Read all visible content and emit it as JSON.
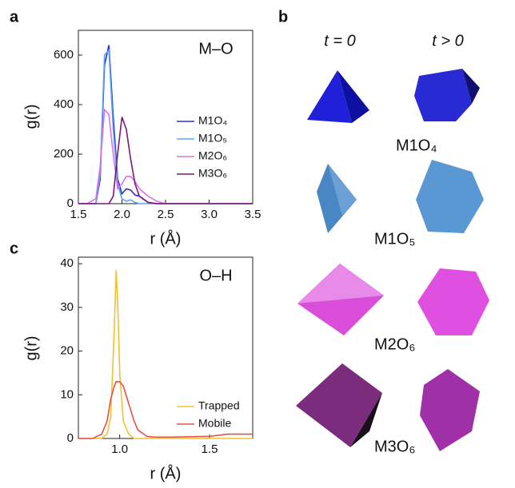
{
  "chart_data": [
    {
      "type": "line",
      "panel_label": "a",
      "annotation": "M–O",
      "xlabel": "r (Å)",
      "ylabel": "g(r)",
      "x": [
        1.5,
        1.6,
        1.7,
        1.75,
        1.8,
        1.85,
        1.9,
        1.95,
        2.0,
        2.05,
        2.1,
        2.15,
        2.2,
        2.3,
        2.4,
        2.5,
        2.6,
        3.0,
        3.5
      ],
      "series": [
        {
          "name": "M1O₄",
          "color": "#2b2bd6",
          "values": [
            0,
            0,
            0,
            100,
            560,
            640,
            350,
            100,
            40,
            60,
            55,
            35,
            30,
            5,
            0,
            0,
            0,
            0,
            0
          ]
        },
        {
          "name": "M1O₅",
          "color": "#5aa6ee",
          "values": [
            0,
            0,
            0,
            120,
            600,
            620,
            300,
            80,
            20,
            10,
            15,
            5,
            0,
            0,
            0,
            0,
            0,
            0,
            0
          ]
        },
        {
          "name": "M2O₆",
          "color": "#e070e8",
          "values": [
            0,
            0,
            20,
            150,
            380,
            360,
            200,
            60,
            80,
            110,
            110,
            90,
            60,
            30,
            10,
            0,
            0,
            0,
            0
          ]
        },
        {
          "name": "M3O₆",
          "color": "#7a1a72",
          "values": [
            0,
            0,
            0,
            0,
            0,
            0,
            30,
            200,
            350,
            300,
            180,
            80,
            30,
            5,
            0,
            0,
            0,
            0,
            0
          ]
        }
      ],
      "xlim": [
        1.5,
        3.5
      ],
      "ylim": [
        0,
        700
      ],
      "xticks": [
        1.5,
        {
          "value": 2,
          "label": "2.0"
        },
        2.5,
        {
          "value": 3,
          "label": "3.0"
        },
        3.5
      ],
      "yticks": [
        0,
        200,
        400,
        600
      ],
      "legend": "right"
    },
    {
      "type": "line",
      "panel_label": "c",
      "annotation": "O–H",
      "xlabel": "r (Å)",
      "ylabel": "g(r)",
      "x": [
        0.77,
        0.85,
        0.9,
        0.93,
        0.95,
        0.97,
        0.98,
        0.99,
        1.0,
        1.02,
        1.05,
        1.08,
        1.1,
        1.15,
        1.2,
        1.3,
        1.5,
        1.6,
        1.74
      ],
      "series": [
        {
          "name": "Trapped",
          "color": "#f2c12e",
          "values": [
            0,
            0,
            0,
            1,
            5,
            25,
            38.5,
            30,
            15,
            4,
            1,
            0,
            0,
            0,
            0,
            0,
            0,
            0,
            0
          ]
        },
        {
          "name": "Mobile",
          "color": "#e8504a",
          "values": [
            0,
            0,
            1,
            4,
            9,
            12,
            13,
            13,
            13,
            12,
            8,
            4,
            2,
            0.5,
            0.3,
            0.3,
            0.5,
            1,
            1
          ]
        }
      ],
      "xlim": [
        0.77,
        1.74
      ],
      "ylim": [
        0,
        41.5
      ],
      "xticks": [
        {
          "value": 1,
          "label": "1.0"
        },
        1.5
      ],
      "yticks": [
        0,
        10,
        20,
        30,
        40
      ],
      "legend": "lower right"
    }
  ],
  "panel_b": {
    "label": "b",
    "column_headers": [
      "t = 0",
      "t > 0"
    ],
    "row_labels": [
      "M1O₄",
      "M1O₅",
      "M2O₆",
      "M3O₆"
    ]
  }
}
